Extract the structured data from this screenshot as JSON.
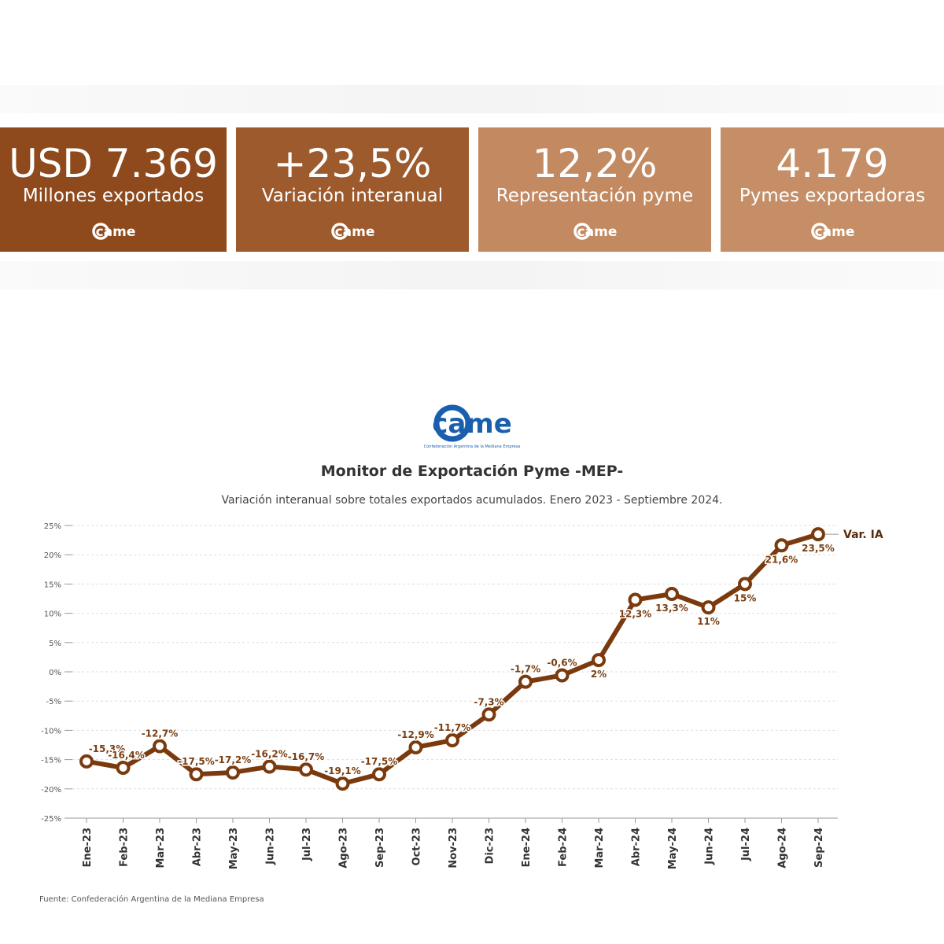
{
  "kpis": [
    {
      "value": "USD 7.369",
      "label": "Millones exportados",
      "logo": "came",
      "color": "#8e4a1c"
    },
    {
      "value": "+23,5%",
      "label": "Variación interanual",
      "logo": "came",
      "color": "#9d5a2c"
    },
    {
      "value": "12,2%",
      "label": "Representación pyme",
      "logo": "came",
      "color": "#c38a62"
    },
    {
      "value": "4.179",
      "label": "Pymes exportadoras",
      "logo": "came",
      "color": "#c58e66"
    }
  ],
  "logo": {
    "text": "came",
    "tagline": "Confederación Argentina de la Mediana Empresa",
    "color": "#1a5fae"
  },
  "chart_data": {
    "type": "line",
    "title": "Monitor de Exportación Pyme -MEP-",
    "subtitle": "Variación interanual sobre totales exportados acumulados. Enero 2023 - Septiembre 2024.",
    "source": "Fuente: Confederación Argentina de la Mediana Empresa",
    "categories": [
      "Ene-23",
      "Feb-23",
      "Mar-23",
      "Abr-23",
      "May-23",
      "Jun-23",
      "Jul-23",
      "Ago-23",
      "Sep-23",
      "Oct-23",
      "Nov-23",
      "Dic-23",
      "Ene-24",
      "Feb-24",
      "Mar-24",
      "Abr-24",
      "May-24",
      "Jun-24",
      "Jul-24",
      "Ago-24",
      "Sep-24"
    ],
    "series": [
      {
        "name": "Var. IA",
        "color": "#7a3a0e",
        "values": [
          -15.3,
          -16.4,
          -12.7,
          -17.5,
          -17.2,
          -16.2,
          -16.7,
          -19.1,
          -17.5,
          -12.9,
          -11.7,
          -7.3,
          -1.7,
          -0.6,
          2,
          12.3,
          13.3,
          11,
          15,
          21.6,
          23.5
        ],
        "labels": [
          "-15,3%",
          "-16,4%",
          "-12,7%",
          "-17,5%",
          "-17,2%",
          "-16,2%",
          "-16,7%",
          "-19,1%",
          "-17,5%",
          "-12,9%",
          "-11,7%",
          "-7,3%",
          "-1,7%",
          "-0,6%",
          "2%",
          "12,3%",
          "13,3%",
          "11%",
          "15%",
          "21,6%",
          "23,5%"
        ]
      }
    ],
    "yticks": [
      "25%",
      "20%",
      "15%",
      "10%",
      "5%",
      "0%",
      "-5%",
      "-10%",
      "-15%",
      "-20%",
      "-25%"
    ],
    "ytick_values": [
      25,
      20,
      15,
      10,
      5,
      0,
      -5,
      -10,
      -15,
      -20,
      -25
    ],
    "ylim": [
      -25,
      25
    ],
    "grid": true,
    "legend": "end-of-line label"
  }
}
